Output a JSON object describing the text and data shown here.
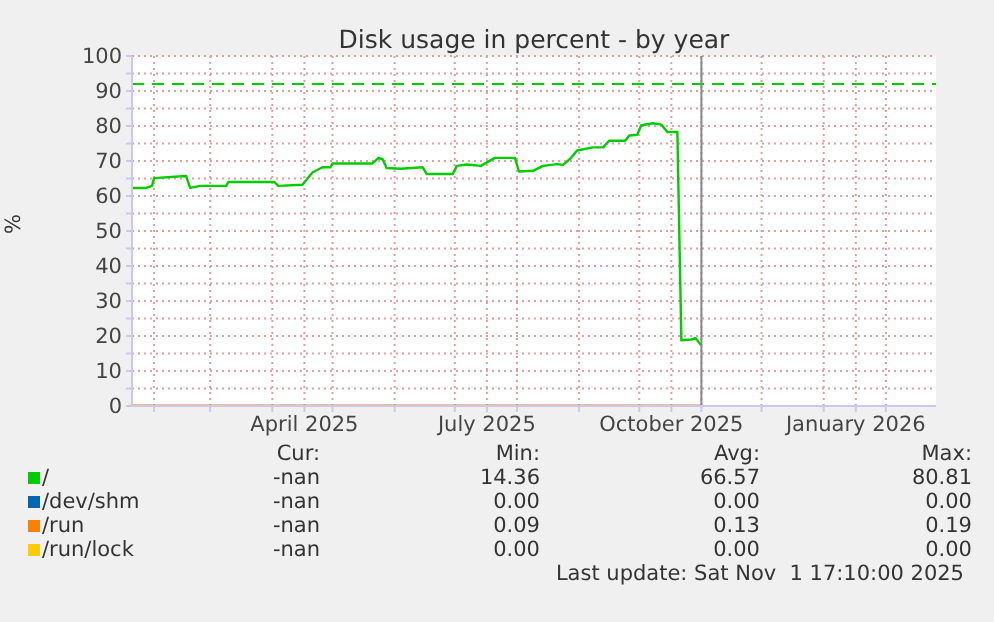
{
  "chart_data": {
    "type": "line",
    "title": "Disk usage in percent - by year",
    "ylabel": "%",
    "xlim": [
      "2025-01-21",
      "2026-02-26"
    ],
    "xticks": [
      {
        "value": "2025-02-01",
        "label": null
      },
      {
        "value": "2025-03-01",
        "label": null
      },
      {
        "value": "2025-04-01",
        "label": null
      },
      {
        "value": "2025-04-17",
        "label": "April 2025"
      },
      {
        "value": "2025-05-01",
        "label": null
      },
      {
        "value": "2025-06-01",
        "label": null
      },
      {
        "value": "2025-07-01",
        "label": null
      },
      {
        "value": "2025-07-17",
        "label": "July 2025"
      },
      {
        "value": "2025-08-01",
        "label": null
      },
      {
        "value": "2025-09-01",
        "label": null
      },
      {
        "value": "2025-10-01",
        "label": null
      },
      {
        "value": "2025-10-17",
        "label": "October 2025"
      },
      {
        "value": "2025-11-01",
        "label": null
      },
      {
        "value": "2025-12-01",
        "label": null
      },
      {
        "value": "2026-01-01",
        "label": null
      },
      {
        "value": "2026-01-17",
        "label": "January 2026"
      },
      {
        "value": "2026-02-01",
        "label": null
      }
    ],
    "ylim": [
      0,
      100
    ],
    "yticks": [
      0,
      {
        "value": 5,
        "label": null
      },
      10,
      {
        "value": 15,
        "label": null
      },
      20,
      {
        "value": 25,
        "label": null
      },
      30,
      {
        "value": 35,
        "label": null
      },
      40,
      {
        "value": 45,
        "label": null
      },
      50,
      {
        "value": 55,
        "label": null
      },
      60,
      {
        "value": 65,
        "label": null
      },
      70,
      {
        "value": 75,
        "label": null
      },
      80,
      {
        "value": 85,
        "label": null
      },
      90,
      {
        "value": 95,
        "label": null
      },
      100
    ],
    "grid": true,
    "legend": "bottom",
    "marker": "none",
    "line_style": "solid",
    "series": [
      {
        "name": "/",
        "color": "#00cc00",
        "x": [
          "2025-01-21",
          "2025-01-28",
          "2025-01-31",
          "2025-02-01",
          "2025-02-17",
          "2025-02-19",
          "2025-02-24",
          "2025-03-09",
          "2025-03-10",
          "2025-04-02",
          "2025-04-04",
          "2025-04-16",
          "2025-04-21",
          "2025-04-26",
          "2025-04-30",
          "2025-05-01",
          "2025-05-21",
          "2025-05-24",
          "2025-05-26",
          "2025-05-28",
          "2025-06-04",
          "2025-06-15",
          "2025-06-17",
          "2025-06-30",
          "2025-07-02",
          "2025-07-07",
          "2025-07-14",
          "2025-07-21",
          "2025-07-31",
          "2025-08-02",
          "2025-08-09",
          "2025-08-14",
          "2025-08-21",
          "2025-08-24",
          "2025-08-28",
          "2025-08-31",
          "2025-09-08",
          "2025-09-13",
          "2025-09-16",
          "2025-09-24",
          "2025-09-26",
          "2025-09-30",
          "2025-10-02",
          "2025-10-08",
          "2025-10-12",
          "2025-10-15",
          "2025-10-20",
          "2025-10-22",
          "2025-10-27",
          "2025-10-29",
          "2025-11-01"
        ],
        "values": [
          62.3,
          62.3,
          62.9,
          65.1,
          65.7,
          62.3,
          62.9,
          62.9,
          64,
          64,
          62.9,
          63.2,
          66.7,
          68.2,
          68.2,
          69.3,
          69.3,
          70.9,
          70.5,
          68,
          67.8,
          68.2,
          66.3,
          66.3,
          68.6,
          69,
          68.6,
          70.9,
          70.9,
          67,
          67.2,
          68.6,
          69.1,
          68.9,
          70.9,
          73,
          73.9,
          73.9,
          75.8,
          75.8,
          77.3,
          77.5,
          80.2,
          80.8,
          80.4,
          78.3,
          78.3,
          18.8,
          19,
          19.4,
          17.3
        ]
      },
      {
        "name": "/dev/shm",
        "color": "#0066b3"
      },
      {
        "name": "/run",
        "color": "#ff8000",
        "x": [
          "2025-01-21",
          "2025-11-01"
        ],
        "values": [
          0.1,
          0.1
        ]
      },
      {
        "name": "/run/lock",
        "color": "#ffcc00"
      }
    ],
    "ref_lines": [
      {
        "axis": "y",
        "value": 92,
        "color": "#00cc00",
        "line_style": "dashed"
      },
      {
        "axis": "x",
        "value": "2025-11-01",
        "color": "#888888",
        "line_style": "solid"
      }
    ],
    "annotations": [
      "Cur:",
      "Min:",
      "Avg:",
      "Max:",
      "-nan",
      "14.36",
      "66.57",
      "80.81",
      "-nan",
      "0.00",
      "0.00",
      "0.00",
      "-nan",
      "0.09",
      "0.13",
      "0.19",
      "-nan",
      "0.00",
      "0.00",
      "0.00",
      "Last update: Sat Nov  1 17:10:00 2025"
    ]
  }
}
